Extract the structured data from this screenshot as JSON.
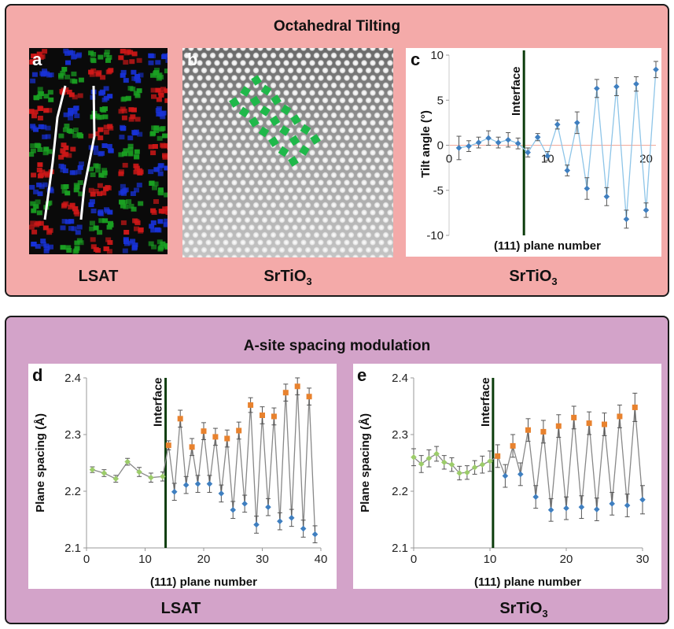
{
  "top": {
    "title": "Octahedral Tilting",
    "captions": {
      "a": "LSAT",
      "b_main": "SrTiO",
      "b_sub": "3",
      "c_main": "SrTiO",
      "c_sub": "3"
    },
    "letters": {
      "a": "a",
      "b": "b",
      "c": "c"
    }
  },
  "bottom": {
    "title": "A-site spacing modulation",
    "captions": {
      "d": "LSAT",
      "e_main": "SrTiO",
      "e_sub": "3"
    },
    "letters": {
      "d": "d",
      "e": "e"
    }
  },
  "colors": {
    "top_bg": "#f4aaa9",
    "bottom_bg": "#d3a3c9",
    "blue_point": "#3f7fc0",
    "orange_point": "#e8822e",
    "green_point": "#9ccc6a",
    "line_blue": "#8ec5e8",
    "interface_line": "#0c3d0c",
    "zero_line": "#f2a99a",
    "octahedra": "#1fb84a"
  },
  "chart_data": [
    {
      "id": "c",
      "type": "line",
      "xlabel": "(111) plane number",
      "ylabel": "Tilt angle (°)",
      "annotation": "Interface",
      "interface_x": 7.6,
      "xlim": [
        0,
        21
      ],
      "ylim": [
        -10,
        10
      ],
      "xticks": [
        0,
        10,
        20
      ],
      "yticks": [
        10,
        5,
        0,
        -5,
        -10
      ],
      "x": [
        1,
        2,
        3,
        4,
        5,
        6,
        7,
        8,
        9,
        10,
        11,
        12,
        13,
        14,
        15,
        16,
        17,
        18,
        19,
        20,
        21
      ],
      "y": [
        -0.3,
        -0.1,
        0.3,
        0.8,
        0.3,
        0.6,
        0.2,
        -0.8,
        0.9,
        -1.2,
        2.3,
        -2.8,
        2.5,
        -4.8,
        6.3,
        -5.7,
        6.5,
        -8.2,
        6.8,
        -7.2,
        8.4
      ],
      "err": [
        1.3,
        0.6,
        0.6,
        0.8,
        0.6,
        0.8,
        0.6,
        0.5,
        0.4,
        0.5,
        0.5,
        0.6,
        1.2,
        1.2,
        1.0,
        1.0,
        1.0,
        1.0,
        0.8,
        0.8,
        0.9
      ]
    },
    {
      "id": "d",
      "type": "line",
      "xlabel": "(111) plane number",
      "ylabel": "Plane spacing (Å)",
      "annotation": "Interface",
      "interface_x": 13.5,
      "xlim": [
        0,
        40
      ],
      "ylim": [
        2.1,
        2.4
      ],
      "xticks": [
        0,
        10,
        20,
        30,
        40
      ],
      "yticks": [
        2.4,
        2.3,
        2.2,
        2.1
      ],
      "x": [
        1,
        3,
        5,
        7,
        9,
        11,
        13,
        14,
        15,
        16,
        17,
        18,
        19,
        20,
        21,
        22,
        23,
        24,
        25,
        26,
        27,
        28,
        29,
        30,
        31,
        32,
        33,
        34,
        35,
        36,
        37,
        38,
        39
      ],
      "y": [
        2.238,
        2.232,
        2.222,
        2.252,
        2.234,
        2.224,
        2.226,
        2.281,
        2.199,
        2.328,
        2.211,
        2.278,
        2.213,
        2.306,
        2.213,
        2.296,
        2.196,
        2.293,
        2.167,
        2.307,
        2.178,
        2.352,
        2.141,
        2.334,
        2.172,
        2.332,
        2.147,
        2.374,
        2.153,
        2.385,
        2.134,
        2.367,
        2.124
      ],
      "err": [
        0.005,
        0.006,
        0.006,
        0.006,
        0.008,
        0.008,
        0.008,
        0.008,
        0.015,
        0.015,
        0.015,
        0.015,
        0.015,
        0.015,
        0.015,
        0.015,
        0.015,
        0.015,
        0.015,
        0.015,
        0.015,
        0.013,
        0.015,
        0.015,
        0.015,
        0.015,
        0.015,
        0.015,
        0.015,
        0.015,
        0.015,
        0.015,
        0.015
      ],
      "marker": [
        "g",
        "g",
        "g",
        "g",
        "g",
        "g",
        "g",
        "o",
        "b",
        "o",
        "b",
        "o",
        "b",
        "o",
        "b",
        "o",
        "b",
        "o",
        "b",
        "o",
        "b",
        "o",
        "b",
        "o",
        "b",
        "o",
        "b",
        "o",
        "b",
        "o",
        "b",
        "o",
        "b"
      ]
    },
    {
      "id": "e",
      "type": "line",
      "xlabel": "(111) plane number",
      "ylabel": "Plane spacing (Å)",
      "annotation": "Interface",
      "interface_x": 10.4,
      "xlim": [
        0,
        30
      ],
      "ylim": [
        2.1,
        2.4
      ],
      "xticks": [
        0,
        10,
        20,
        30
      ],
      "yticks": [
        2.4,
        2.3,
        2.2,
        2.1
      ],
      "x": [
        0,
        1,
        2,
        3,
        4,
        5,
        6,
        7,
        8,
        9,
        10,
        11,
        12,
        13,
        14,
        15,
        16,
        17,
        18,
        19,
        20,
        21,
        22,
        23,
        24,
        25,
        26,
        27,
        28,
        29,
        30
      ],
      "y": [
        2.26,
        2.248,
        2.258,
        2.266,
        2.251,
        2.247,
        2.232,
        2.233,
        2.242,
        2.247,
        2.253,
        2.262,
        2.227,
        2.28,
        2.23,
        2.308,
        2.19,
        2.305,
        2.167,
        2.315,
        2.17,
        2.33,
        2.172,
        2.32,
        2.168,
        2.318,
        2.178,
        2.332,
        2.175,
        2.348,
        2.185
      ],
      "err": [
        0.015,
        0.015,
        0.015,
        0.013,
        0.012,
        0.012,
        0.012,
        0.012,
        0.012,
        0.015,
        0.018,
        0.02,
        0.02,
        0.02,
        0.02,
        0.02,
        0.02,
        0.02,
        0.02,
        0.02,
        0.02,
        0.02,
        0.02,
        0.02,
        0.02,
        0.02,
        0.02,
        0.02,
        0.02,
        0.025,
        0.025
      ],
      "marker": [
        "g",
        "g",
        "g",
        "g",
        "g",
        "g",
        "g",
        "g",
        "g",
        "g",
        "g",
        "o",
        "b",
        "o",
        "b",
        "o",
        "b",
        "o",
        "b",
        "o",
        "b",
        "o",
        "b",
        "o",
        "b",
        "o",
        "b",
        "o",
        "b",
        "o",
        "b"
      ]
    }
  ]
}
